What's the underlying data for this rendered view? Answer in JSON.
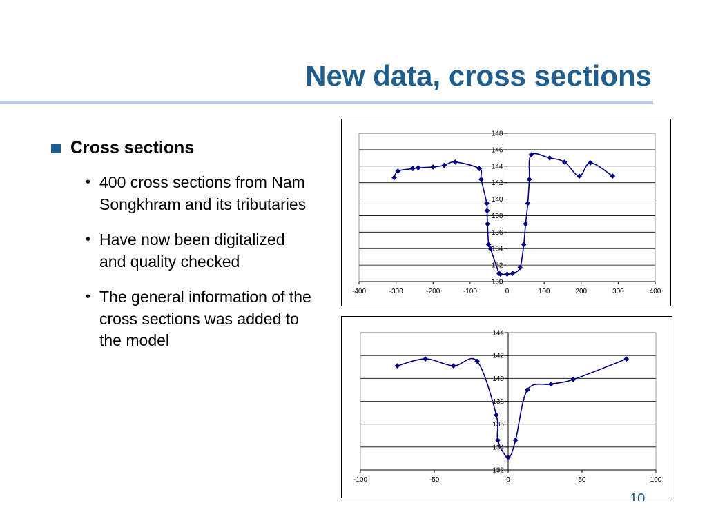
{
  "slide": {
    "title": "New data, cross sections",
    "page_number": "10"
  },
  "content": {
    "main_bullet": "Cross sections",
    "sub_bullets": [
      "400 cross sections from Nam Songkhram and its tributaries",
      "Have now been digitalized and quality checked",
      "The general information of the cross sections was added to the model"
    ]
  },
  "chart_data": [
    {
      "type": "line",
      "title": "",
      "xlabel": "",
      "ylabel": "",
      "xlim": [
        -400,
        400
      ],
      "ylim": [
        130,
        148
      ],
      "x_ticks": [
        -400,
        -300,
        -200,
        -100,
        0,
        100,
        200,
        300,
        400
      ],
      "y_ticks": [
        130,
        132,
        134,
        136,
        138,
        140,
        142,
        144,
        146,
        148
      ],
      "grid": "horizontal",
      "legend": "none",
      "line_color": "#000080",
      "series": [
        {
          "x": [
            -305,
            -295,
            -255,
            -240,
            -200,
            -170,
            -140,
            -75,
            -70,
            -55,
            -54,
            -53,
            -50,
            -45,
            -22,
            -18,
            0,
            15,
            35,
            45,
            50,
            56,
            60,
            65,
            115,
            155,
            195,
            225,
            285
          ],
          "y": [
            142.6,
            143.4,
            143.7,
            143.8,
            143.9,
            144.1,
            144.5,
            143.7,
            142.4,
            139.5,
            138.6,
            137.0,
            134.5,
            134.0,
            131.0,
            130.9,
            130.9,
            131.0,
            131.7,
            134.5,
            137.0,
            139.5,
            142.4,
            145.4,
            145.0,
            144.5,
            142.8,
            144.4,
            142.8
          ]
        }
      ]
    },
    {
      "type": "line",
      "title": "",
      "xlabel": "",
      "ylabel": "",
      "xlim": [
        -100,
        100
      ],
      "ylim": [
        132,
        144
      ],
      "x_ticks": [
        -100,
        -50,
        0,
        50,
        100
      ],
      "y_ticks": [
        132,
        134,
        136,
        138,
        140,
        142,
        144
      ],
      "grid": "horizontal",
      "legend": "none",
      "line_color": "#000080",
      "series": [
        {
          "x": [
            -75,
            -56,
            -37,
            -21,
            -8,
            -7,
            0,
            5,
            13,
            29,
            44,
            80
          ],
          "y": [
            141.1,
            141.7,
            141.1,
            141.5,
            136.8,
            134.6,
            133.1,
            134.6,
            139.0,
            139.5,
            139.9,
            141.7
          ]
        }
      ]
    }
  ]
}
